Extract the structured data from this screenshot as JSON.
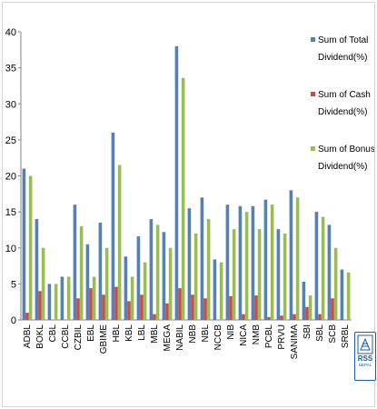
{
  "chart_data": {
    "type": "bar",
    "categories": [
      "ADBL",
      "BOKL",
      "CBL",
      "CCBL",
      "CZBIL",
      "EBL",
      "GBIME",
      "HBL",
      "KBL",
      "LBL",
      "MBL",
      "MEGA",
      "NABIL",
      "NBB",
      "NBL",
      "NCCB",
      "NIB",
      "NICA",
      "NMB",
      "PCBL",
      "PRVU",
      "SANIMA",
      "SBI",
      "SBL",
      "SCB",
      "SRBL"
    ],
    "series": [
      {
        "name": "Sum of Total Dividend(%)",
        "color": "#4f81bd",
        "values": [
          21,
          14,
          5,
          6,
          16,
          10.5,
          13.5,
          26,
          8.8,
          11.6,
          14,
          12.2,
          38,
          15.5,
          17,
          8.4,
          16,
          15.8,
          15.8,
          16.7,
          12.6,
          18,
          5.3,
          15,
          13.2,
          7
        ]
      },
      {
        "name": "Sum of Cash Dividend(%)",
        "color": "#c0504d",
        "values": [
          1,
          4,
          0,
          0,
          3,
          4.4,
          3.5,
          4.6,
          2.6,
          3.5,
          0.8,
          2.3,
          4.4,
          3.5,
          3,
          0,
          3.3,
          0.8,
          3.4,
          0.4,
          0.6,
          0.8,
          1.8,
          0.8,
          3,
          0
        ]
      },
      {
        "name": "Sum of Bonus Dividend(%)",
        "color": "#9bbb59",
        "values": [
          20,
          10,
          5,
          6,
          13,
          6,
          10,
          21.5,
          6,
          8,
          13.2,
          10,
          33.6,
          12,
          14,
          8,
          12.6,
          15,
          12.6,
          16,
          12,
          17,
          3.4,
          14.3,
          10,
          6.6
        ]
      }
    ],
    "ylim": [
      0,
      40
    ],
    "yticks": [
      0,
      5,
      10,
      15,
      20,
      25,
      30,
      35,
      40
    ],
    "grid": false,
    "legend_position": "right"
  },
  "legend": [
    {
      "line1": "Sum of Total",
      "line2": "Dividend(%)",
      "icon": "blue-square"
    },
    {
      "line1": "Sum of Cash",
      "line2": "Dividend(%)",
      "icon": "red-square"
    },
    {
      "line1": "Sum of Bonus",
      "line2": "Dividend(%)",
      "icon": "green-square"
    }
  ],
  "logo": {
    "word": "RSS",
    "sub": "NEPAL"
  }
}
